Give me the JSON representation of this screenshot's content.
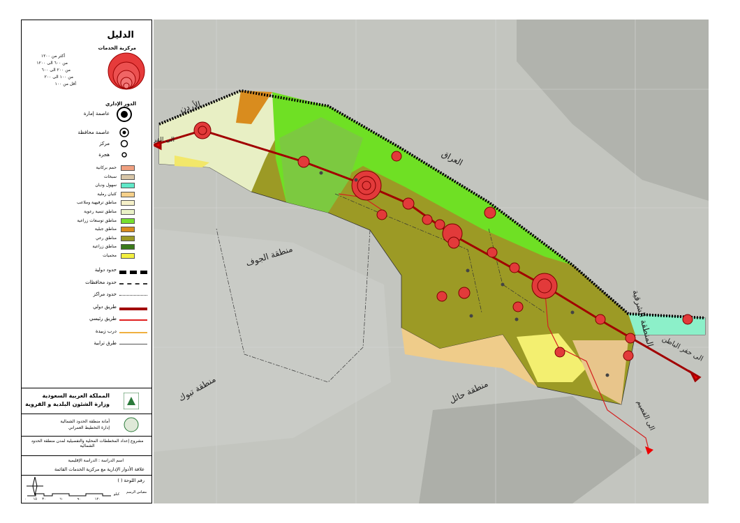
{
  "legend": {
    "title": "الدليل",
    "centrality": {
      "title": "مركزية الخدمات",
      "items": [
        "أكثر من ١٢٠٠",
        "من ٦٠٠ الى ١٢٠٠",
        "من ٢٠٠ الى ٦٠٠",
        "من ١٠٠ الى ٢٠٠",
        "أقل من ١٠٠"
      ]
    },
    "admin": {
      "title": "الدور الإداري",
      "items": [
        "عاصمة إمارة",
        "عاصمة محافظة",
        "مركز",
        "هجرة"
      ]
    },
    "land_use": [
      "حمم بركانية",
      "سبخات",
      "سهول وديان",
      "كثبان رملية",
      "مناطق ترفيهية وملاعب",
      "مناطق تنمية رعوية",
      "مناطق توسعات زراعية",
      "مناطق جبلية",
      "مناطق رعي",
      "مناطق زراعية",
      "محميات"
    ],
    "lines": [
      "حدود دولية",
      "حدود محافظات",
      "حدود مراكز",
      "طريق دولي",
      "طريق رئيسي",
      "درب زبيدة",
      "طرق ترابية"
    ]
  },
  "title_block": {
    "kingdom": "المملكة العربية السعودية",
    "ministry": "وزارة الشئون البلدية و القروية",
    "municipality": "أمانة منطقة الحدود الشمالية",
    "department": "إدارة التخطيط العمراني",
    "project": "مشروع إعداد المخططات المحلية والتفصيلية لمدن منطقة الحدود الشمالية",
    "study": "اسم الدراسة : الدراسة الإقليمية",
    "sheet_title": "علاقة الأدوار الإدارية مع مركزية الخدمات القائمة",
    "sheet_no": "رقم اللوحة (   )",
    "scale_title": "مقياس الرسم",
    "scale_unit": "كيلو",
    "scale_ticks": [
      "٠",
      "١٥",
      "٣٠",
      "٦٠",
      "٩٠",
      "١٢٠"
    ]
  },
  "map_labels": {
    "jordan": "الأردن",
    "iraq": "العراق",
    "jouf": "منطقة الجوف",
    "tabuk": "منطقة تبوك",
    "hail": "منطقة حائل",
    "eastern": "المنطقة الشرقية",
    "to_qurayyat": "الى القريات",
    "to_hafr": "الى حفر الباطن",
    "to_qassim": "الى القصيم"
  }
}
